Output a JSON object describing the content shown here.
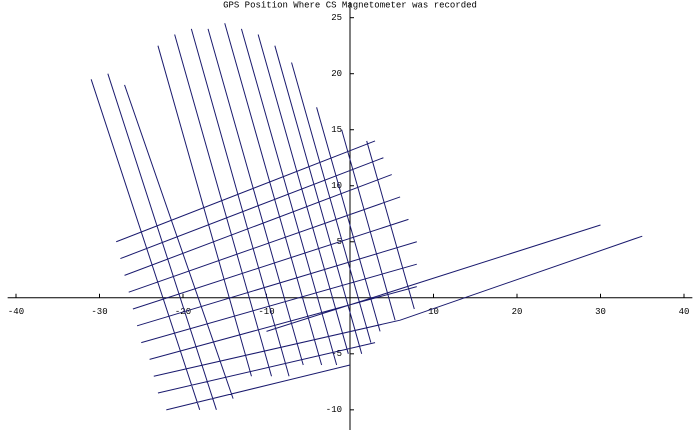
{
  "chart_data": {
    "type": "line",
    "title": "GPS Position Where CS Magnetometer was recorded",
    "xlim": [
      -41,
      41
    ],
    "xticks": [
      -40,
      -30,
      -20,
      -10,
      10,
      20,
      30,
      40
    ],
    "ylim": [
      -11.8,
      26.4
    ],
    "yticks": [
      -10,
      -5,
      5,
      10,
      15,
      20,
      25
    ],
    "series": [
      {
        "color": "#1a1a6e",
        "x": [
          -31,
          -18,
          null,
          -29,
          -16,
          null,
          -27,
          -14,
          null,
          -23,
          -11.8,
          null,
          -21,
          -9.4,
          null,
          -19,
          -7.3,
          null,
          -17,
          -5.6,
          null,
          -15,
          -3.4,
          null,
          -13,
          -1.6,
          null,
          -11,
          -0.2,
          null,
          -9,
          1.4,
          null,
          -7,
          2.5,
          null,
          -4,
          3.6,
          null,
          -1,
          5.4,
          null,
          2,
          7.7,
          null,
          -28,
          3,
          null,
          -27.5,
          4,
          null,
          -27,
          5,
          null,
          -26.5,
          6,
          null,
          -26,
          7,
          null,
          -25.5,
          8,
          null,
          -25,
          8,
          null,
          -24,
          8,
          null,
          -23.5,
          6,
          null,
          -23,
          3,
          null,
          -22,
          0,
          null,
          -10,
          30,
          null,
          6,
          35
        ],
        "values": [
          19.5,
          -10,
          null,
          20,
          -10,
          null,
          19,
          -9,
          null,
          22.5,
          -7,
          null,
          23.5,
          -7,
          null,
          24,
          -7,
          null,
          24,
          -6,
          null,
          24.5,
          -6,
          null,
          24,
          -6,
          null,
          23.5,
          -5,
          null,
          22.5,
          -5,
          null,
          21,
          -4,
          null,
          17,
          -3,
          null,
          15,
          -2,
          null,
          14,
          -1,
          null,
          5,
          14,
          null,
          3.5,
          12.5,
          null,
          2,
          11,
          null,
          0.5,
          9,
          null,
          -1,
          7,
          null,
          -2.5,
          5,
          null,
          -4,
          3,
          null,
          -5.5,
          1,
          null,
          -7,
          -2,
          null,
          -8.5,
          -4,
          null,
          -10,
          -6,
          null,
          -3,
          6.5,
          null,
          -2,
          5.5
        ]
      }
    ]
  }
}
